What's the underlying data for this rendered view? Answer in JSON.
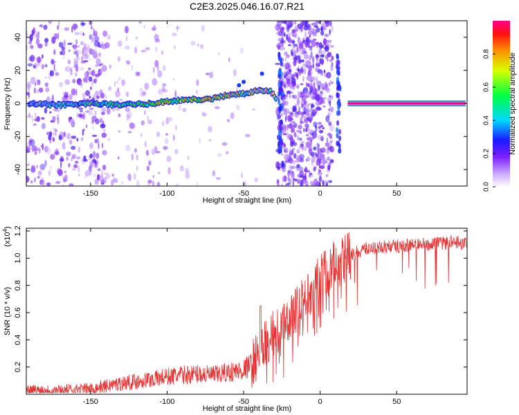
{
  "title": "C2E3.2025.046.16.07.R21",
  "chart_data": [
    {
      "type": "heatmap",
      "xlabel": "Height of straight line (km)",
      "ylabel": "Frequency (Hz)",
      "xlim": [
        -192,
        96
      ],
      "ylim": [
        -50,
        50
      ],
      "xticks": [
        -150,
        -100,
        -50,
        0,
        50
      ],
      "xtick_labels": [
        "-150",
        "-100",
        "-50",
        "0",
        "50"
      ],
      "yticks": [
        -40,
        -20,
        0,
        20,
        40
      ],
      "ytick_labels": [
        "-40",
        "-20",
        "0",
        "20",
        "40"
      ],
      "colorbar": {
        "label": "Normalized spectral amplitude",
        "range": [
          0,
          1
        ],
        "ticks": [
          0.0,
          0.2,
          0.4,
          0.6,
          0.8
        ],
        "tick_labels": [
          "0.0",
          "0.2",
          "0.4",
          "0.6",
          "0.8"
        ]
      },
      "ridge": {
        "x": [
          -190,
          -170,
          -150,
          -130,
          -110,
          -90,
          -70,
          -60,
          -50,
          -40,
          -32,
          -28
        ],
        "y": [
          0,
          -1,
          0,
          -1,
          0,
          2,
          3,
          5,
          6,
          8,
          7,
          2
        ]
      },
      "steady_tone": {
        "x": [
          18,
          95
        ],
        "y": [
          0,
          0
        ],
        "amplitude": 1.0
      },
      "broadband_bands": [
        [
          -28,
          8
        ],
        [
          -192,
          -140
        ]
      ]
    },
    {
      "type": "line",
      "xlabel": "Height of straight line (km)",
      "ylabel": "SNR (10 * v/v)",
      "y_multiplier": "(x10",
      "y_multiplier_exp": "4",
      "y_multiplier_close": ")",
      "xlim": [
        -192,
        96
      ],
      "ylim": [
        0,
        1.22
      ],
      "xticks": [
        -150,
        -100,
        -50,
        0,
        50
      ],
      "xtick_labels": [
        "-150",
        "-100",
        "-50",
        "0",
        "50"
      ],
      "yticks": [
        0.2,
        0.4,
        0.6,
        0.8,
        1.0,
        1.2
      ],
      "ytick_labels": [
        "0.2",
        "0.4",
        "0.6",
        "0.8",
        "1.0",
        "1.2"
      ],
      "color": "#e83030",
      "series": [
        {
          "x": [
            -192,
            -170,
            -150,
            -130,
            -110,
            -100,
            -90,
            -80,
            -70,
            -60,
            -50,
            -45,
            -40,
            -35,
            -30,
            -25,
            -20,
            -15,
            -10,
            -5,
            0,
            5,
            10,
            15,
            20,
            25,
            30,
            40,
            50,
            60,
            70,
            80,
            90,
            96
          ],
          "values": [
            0.03,
            0.03,
            0.04,
            0.08,
            0.11,
            0.13,
            0.14,
            0.15,
            0.14,
            0.16,
            0.18,
            0.22,
            0.3,
            0.38,
            0.45,
            0.5,
            0.55,
            0.62,
            0.7,
            0.78,
            0.86,
            0.92,
            0.96,
            0.99,
            1.02,
            1.05,
            1.07,
            1.08,
            1.09,
            1.1,
            1.1,
            1.11,
            1.12,
            1.1
          ]
        }
      ]
    }
  ]
}
